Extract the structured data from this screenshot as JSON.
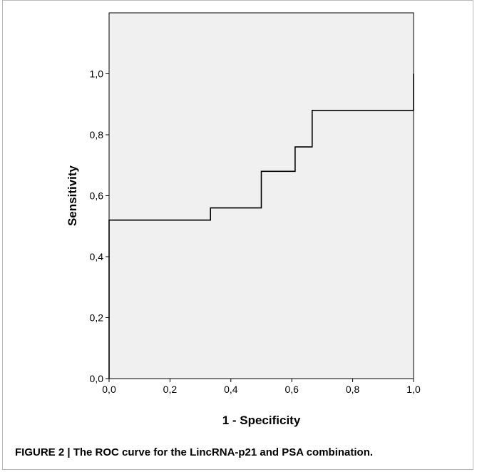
{
  "chart_data": {
    "type": "line",
    "title": "",
    "xlabel": "1 - Specificity",
    "ylabel": "Sensitivity",
    "xlim": [
      0,
      1
    ],
    "ylim": [
      0,
      1.2
    ],
    "x_ticks": [
      "0,0",
      "0,2",
      "0,4",
      "0,6",
      "0,8",
      "1,0"
    ],
    "x_tick_values": [
      0,
      0.2,
      0.4,
      0.6,
      0.8,
      1.0
    ],
    "y_ticks": [
      "0,0",
      "0,2",
      "0,4",
      "0,6",
      "0,8",
      "1,0"
    ],
    "y_tick_values": [
      0,
      0.2,
      0.4,
      0.6,
      0.8,
      1.0
    ],
    "grid": false,
    "background_color": "#f0f0f0",
    "line_color": "#000000",
    "series": [
      {
        "points": [
          [
            0.0,
            0.0
          ],
          [
            0.0,
            0.52
          ],
          [
            0.333,
            0.52
          ],
          [
            0.333,
            0.56
          ],
          [
            0.5,
            0.56
          ],
          [
            0.5,
            0.68
          ],
          [
            0.611,
            0.68
          ],
          [
            0.611,
            0.76
          ],
          [
            0.667,
            0.76
          ],
          [
            0.667,
            0.88
          ],
          [
            1.0,
            0.88
          ],
          [
            1.0,
            1.0
          ]
        ]
      }
    ]
  },
  "caption": "FIGURE 2 | The ROC curve for the LincRNA-p21 and PSA combination."
}
